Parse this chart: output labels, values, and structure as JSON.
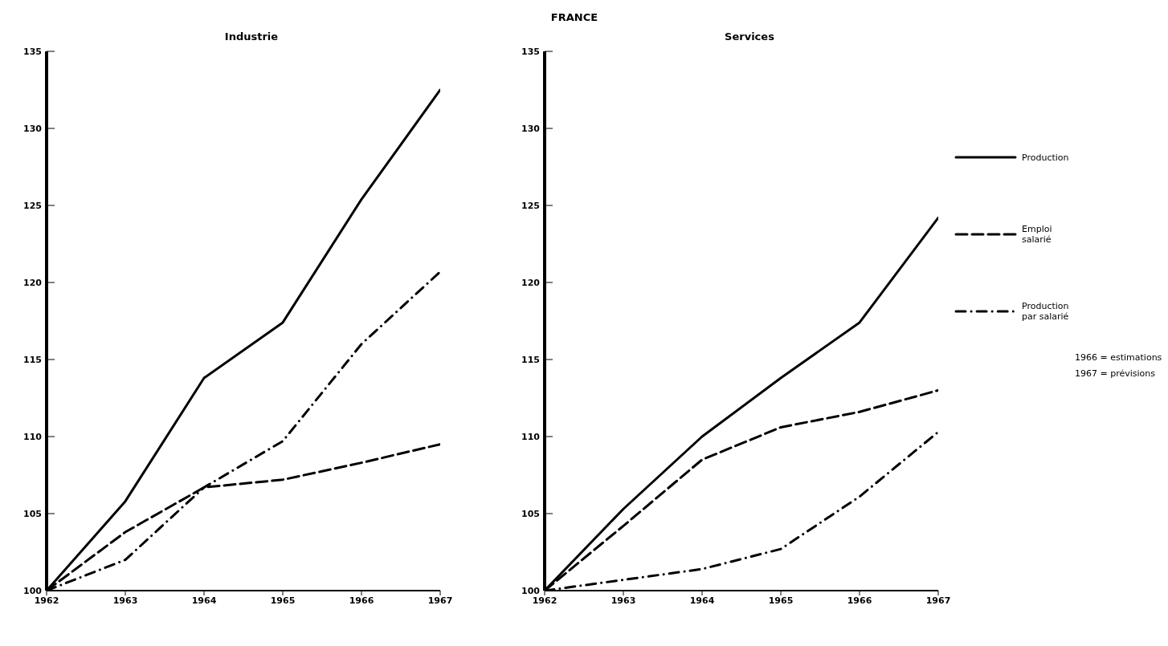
{
  "chart_data": [
    {
      "type": "line",
      "title": "Industrie",
      "annotations": [
        "FRANCE"
      ],
      "x": [
        1962,
        1963,
        1964,
        1965,
        1966,
        1967
      ],
      "xlim": [
        1962,
        1967
      ],
      "xticks": [
        1962,
        1963,
        1964,
        1965,
        1966,
        1967
      ],
      "ylim": [
        100,
        135
      ],
      "yticks": [
        100,
        105,
        110,
        115,
        120,
        125,
        130,
        135
      ],
      "grid": false,
      "legend": false,
      "series": [
        {
          "color": "#000000",
          "line_style": "solid",
          "values": [
            100,
            105.8,
            113.8,
            117.4,
            125.4,
            132.5
          ]
        },
        {
          "color": "#000000",
          "line_style": "dashed",
          "values": [
            100,
            103.8,
            106.7,
            107.2,
            108.3,
            109.5
          ]
        },
        {
          "color": "#000000",
          "line_style": "dotted",
          "values": [
            100,
            102.0,
            106.7,
            109.7,
            116.0,
            120.7
          ]
        }
      ]
    },
    {
      "type": "line",
      "title": "Services",
      "annotations": [
        "1966 = estimations",
        "1967 = prévisions"
      ],
      "x": [
        1962,
        1963,
        1964,
        1965,
        1966,
        1967
      ],
      "xlim": [
        1962,
        1967
      ],
      "xticks": [
        1962,
        1963,
        1964,
        1965,
        1966,
        1967
      ],
      "ylim": [
        100,
        135
      ],
      "yticks": [
        100,
        105,
        110,
        115,
        120,
        125,
        130,
        135
      ],
      "grid": false,
      "legend": "right",
      "series": [
        {
          "name": "Production",
          "color": "#000000",
          "line_style": "solid",
          "values": [
            100,
            105.3,
            110.0,
            113.8,
            117.4,
            124.2
          ]
        },
        {
          "name": "Emploi salarié",
          "color": "#000000",
          "line_style": "dashed",
          "values": [
            100,
            104.2,
            108.5,
            110.6,
            111.6,
            113.0
          ]
        },
        {
          "name": "Production par salarié",
          "color": "#000000",
          "line_style": "dotted",
          "values": [
            100,
            100.7,
            101.4,
            102.7,
            106.1,
            110.3
          ]
        }
      ]
    }
  ]
}
